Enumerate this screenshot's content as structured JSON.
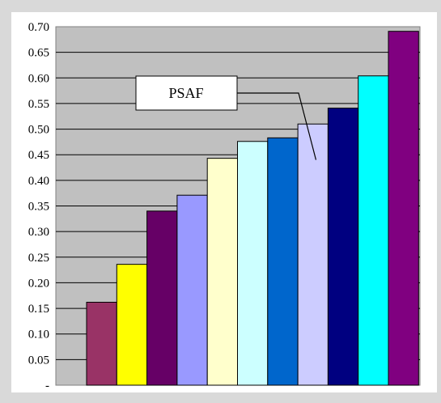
{
  "chart_data": {
    "type": "bar",
    "title": "",
    "xlabel": "",
    "ylabel": "",
    "ylim": [
      0,
      0.7
    ],
    "grid": true,
    "legend": "none",
    "yticks": [
      {
        "value": 0.0,
        "label": "-"
      },
      {
        "value": 0.05,
        "label": "0.05"
      },
      {
        "value": 0.1,
        "label": "0.10"
      },
      {
        "value": 0.15,
        "label": "0.15"
      },
      {
        "value": 0.2,
        "label": "0.20"
      },
      {
        "value": 0.25,
        "label": "0.25"
      },
      {
        "value": 0.3,
        "label": "0.30"
      },
      {
        "value": 0.35,
        "label": "0.35"
      },
      {
        "value": 0.4,
        "label": "0.40"
      },
      {
        "value": 0.45,
        "label": "0.45"
      },
      {
        "value": 0.5,
        "label": "0.50"
      },
      {
        "value": 0.55,
        "label": "0.55"
      },
      {
        "value": 0.6,
        "label": "0.60"
      },
      {
        "value": 0.65,
        "label": "0.65"
      },
      {
        "value": 0.7,
        "label": "0.70"
      }
    ],
    "values": [
      0.162,
      0.236,
      0.34,
      0.371,
      0.443,
      0.476,
      0.483,
      0.51,
      0.541,
      0.604,
      0.691
    ],
    "colors": [
      "#993366",
      "#ffff00",
      "#660066",
      "#9999ff",
      "#ffffcc",
      "#ccffff",
      "#0066cc",
      "#ccccff",
      "#000080",
      "#00ffff",
      "#800080"
    ],
    "annotation": {
      "text": "PSAF",
      "target_index": 7
    },
    "plot_background": "#c0c0c0",
    "outer_background": "#d9d9d9",
    "panel_background": "#ffffff"
  }
}
